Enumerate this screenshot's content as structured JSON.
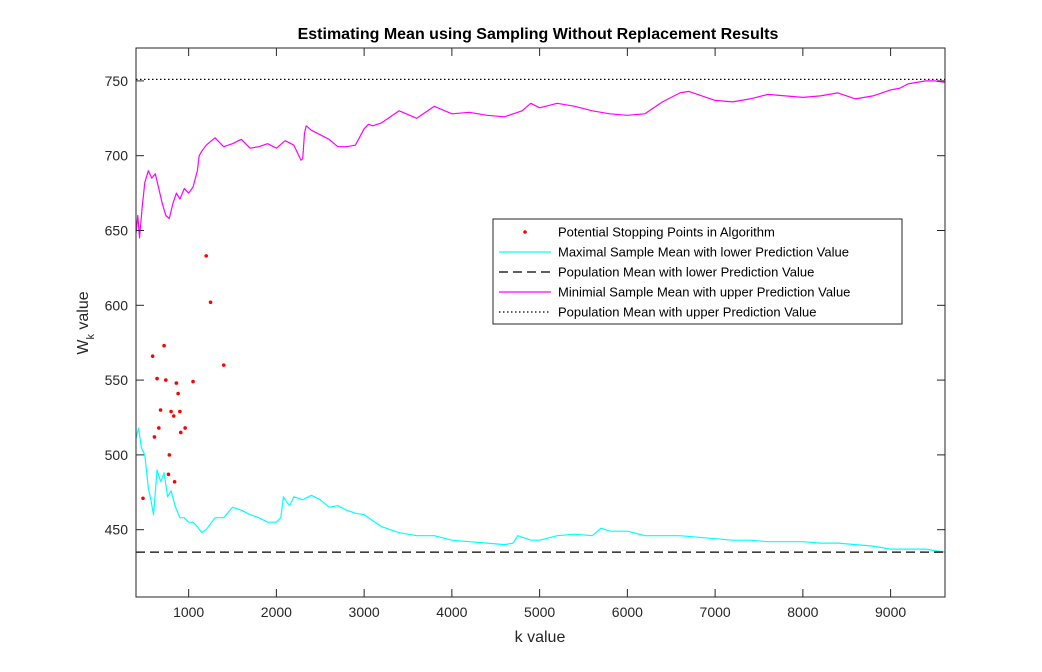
{
  "chart_data": {
    "type": "line",
    "title": "Estimating Mean using Sampling Without Replacement Results",
    "xlabel": "k value",
    "ylabel": {
      "base": "W",
      "subscript": "k",
      "rest": " value"
    },
    "xlim": [
      400,
      9620
    ],
    "ylim": [
      405,
      772
    ],
    "xticks": [
      1000,
      2000,
      3000,
      4000,
      5000,
      6000,
      7000,
      8000,
      9000
    ],
    "yticks": [
      450,
      500,
      550,
      600,
      650,
      700,
      750
    ],
    "grid": false,
    "legend_position": "upper-right inside",
    "series": [
      {
        "name": "Potential Stopping Points in Algorithm",
        "kind": "points",
        "color": "#ff0000",
        "x": [
          480,
          590,
          610,
          640,
          660,
          680,
          720,
          740,
          770,
          780,
          800,
          830,
          840,
          860,
          880,
          900,
          910,
          960,
          1050,
          1200,
          1250,
          1400
        ],
        "y": [
          471,
          566,
          512,
          551,
          518,
          530,
          573,
          550,
          487,
          500,
          529,
          526,
          482,
          548,
          541,
          529,
          515,
          518,
          549,
          633,
          602,
          560
        ]
      },
      {
        "name": "Maximal Sample Mean with lower Prediction Value",
        "kind": "line",
        "color": "#00ffff",
        "x": [
          400,
          430,
          460,
          500,
          540,
          570,
          600,
          640,
          680,
          720,
          760,
          800,
          850,
          900,
          950,
          1000,
          1050,
          1100,
          1150,
          1200,
          1300,
          1400,
          1500,
          1600,
          1700,
          1800,
          1900,
          2000,
          2050,
          2080,
          2100,
          2150,
          2200,
          2300,
          2400,
          2500,
          2600,
          2700,
          2800,
          2900,
          3000,
          3200,
          3400,
          3600,
          3800,
          4000,
          4200,
          4400,
          4600,
          4700,
          4750,
          4800,
          4900,
          5000,
          5200,
          5400,
          5600,
          5700,
          5800,
          6000,
          6200,
          6400,
          6600,
          6800,
          7000,
          7200,
          7400,
          7600,
          7800,
          8000,
          8200,
          8400,
          8600,
          8800,
          9000,
          9200,
          9400,
          9500,
          9620
        ],
        "y": [
          511,
          518,
          505,
          500,
          478,
          470,
          460,
          490,
          482,
          488,
          472,
          476,
          465,
          458,
          458,
          455,
          455,
          452,
          448,
          450,
          458,
          458,
          465,
          463,
          460,
          458,
          455,
          455,
          458,
          472,
          470,
          466,
          472,
          470,
          473,
          470,
          465,
          466,
          463,
          461,
          460,
          452,
          448,
          446,
          446,
          443,
          442,
          441,
          440,
          441,
          446,
          445,
          443,
          443,
          446,
          447,
          446,
          451,
          449,
          449,
          446,
          446,
          446,
          445,
          444,
          443,
          443,
          442,
          442,
          442,
          441,
          441,
          440,
          439,
          437,
          437,
          437,
          436,
          435
        ]
      },
      {
        "name": "Population Mean with lower Prediction Value",
        "kind": "line",
        "style": "dashed",
        "color": "#000000",
        "x": [
          400,
          9620
        ],
        "y": [
          435,
          435
        ]
      },
      {
        "name": "Minimial Sample Mean with upper Prediction Value",
        "kind": "line",
        "color": "#ff00ff",
        "x": [
          400,
          420,
          440,
          470,
          500,
          540,
          580,
          620,
          660,
          700,
          740,
          780,
          820,
          860,
          900,
          950,
          1000,
          1050,
          1100,
          1120,
          1150,
          1200,
          1300,
          1400,
          1500,
          1600,
          1700,
          1800,
          1900,
          2000,
          2100,
          2200,
          2280,
          2300,
          2320,
          2340,
          2400,
          2500,
          2600,
          2700,
          2800,
          2900,
          3000,
          3050,
          3100,
          3200,
          3400,
          3600,
          3800,
          4000,
          4200,
          4400,
          4600,
          4800,
          4900,
          5000,
          5200,
          5400,
          5600,
          5800,
          6000,
          6200,
          6400,
          6600,
          6700,
          6800,
          7000,
          7200,
          7400,
          7600,
          7800,
          8000,
          8200,
          8400,
          8600,
          8800,
          9000,
          9100,
          9200,
          9400,
          9500,
          9620
        ],
        "y": [
          648,
          660,
          645,
          665,
          682,
          690,
          685,
          688,
          678,
          668,
          660,
          658,
          668,
          675,
          671,
          678,
          675,
          679,
          690,
          700,
          703,
          707,
          712,
          706,
          708,
          711,
          705,
          706,
          708,
          705,
          710,
          707,
          697,
          698,
          715,
          720,
          717,
          714,
          711,
          706,
          706,
          707,
          718,
          721,
          720,
          722,
          730,
          725,
          733,
          728,
          729,
          727,
          726,
          730,
          735,
          732,
          735,
          733,
          730,
          728,
          727,
          728,
          736,
          742,
          743,
          741,
          737,
          736,
          738,
          741,
          740,
          739,
          740,
          742,
          738,
          740,
          744,
          745,
          748,
          750,
          750,
          749
        ]
      },
      {
        "name": "Population Mean with upper Prediction Value",
        "kind": "line",
        "style": "dotted",
        "color": "#000000",
        "x": [
          400,
          9620
        ],
        "y": [
          751,
          751
        ]
      }
    ]
  }
}
